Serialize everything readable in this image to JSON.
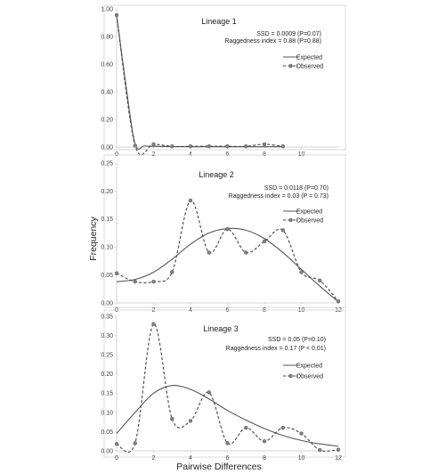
{
  "figure": {
    "ylabel": "Frequency",
    "xlabel": "Pairwise Differences"
  },
  "legend": {
    "expected": "Expected",
    "observed": "Observed"
  },
  "chart_data": [
    {
      "type": "line",
      "title": "Lineage 1",
      "annotations": [
        "SSD = 0.0009 (P=0.07)",
        "Raggedness index = 0.88 (P=0.88)"
      ],
      "xlim": [
        0,
        12
      ],
      "ylim": [
        0,
        1.0
      ],
      "xticks": [
        "0",
        "2",
        "4",
        "6",
        "8",
        "10"
      ],
      "yticks": [
        "0.00",
        "0.20",
        "0.40",
        "0.60",
        "0.80",
        "1.00"
      ],
      "legend_position": "right",
      "series": [
        {
          "name": "Expected",
          "x": [
            0,
            0.5,
            1,
            1.5,
            2,
            3,
            4,
            5,
            6,
            7,
            8,
            9
          ],
          "y": [
            0.955,
            0.45,
            0.02,
            0.008,
            0.005,
            0.003,
            0.002,
            0.002,
            0.002,
            0.002,
            0.002,
            0.002
          ]
        },
        {
          "name": "Observed",
          "x": [
            0,
            1,
            2,
            3,
            4,
            5,
            6,
            7,
            8,
            9
          ],
          "y": [
            0.955,
            0.01,
            0.02,
            0.005,
            0.005,
            0.005,
            0.005,
            0.005,
            0.02,
            0.005
          ]
        }
      ]
    },
    {
      "type": "line",
      "title": "Lineage 2",
      "annotations": [
        "SSD = 0.0118 (P=0.70)",
        "Raggedness index = 0.03 (P = 0.73)"
      ],
      "xlim": [
        0,
        12
      ],
      "ylim": [
        0,
        0.25
      ],
      "xticks": [
        "0",
        "2",
        "4",
        "6",
        "8",
        "10",
        "12"
      ],
      "yticks": [
        "0.00",
        "0.05",
        "0.10",
        "0.15",
        "0.20",
        "0.25"
      ],
      "legend_position": "right",
      "series": [
        {
          "name": "Expected",
          "x": [
            0,
            1,
            2,
            3,
            4,
            5,
            6,
            7,
            8,
            9,
            10,
            11,
            12
          ],
          "y": [
            0.038,
            0.042,
            0.055,
            0.078,
            0.105,
            0.125,
            0.133,
            0.13,
            0.115,
            0.09,
            0.06,
            0.03,
            0.002
          ]
        },
        {
          "name": "Observed",
          "x": [
            0,
            1,
            2,
            3,
            4,
            5,
            6,
            7,
            8,
            9,
            10,
            11,
            12
          ],
          "y": [
            0.053,
            0.038,
            0.038,
            0.055,
            0.183,
            0.09,
            0.132,
            0.09,
            0.11,
            0.13,
            0.055,
            0.04,
            0.003
          ]
        }
      ]
    },
    {
      "type": "line",
      "title": "Lineage 3",
      "annotations": [
        "SSD = 0.05 (P=0.10)",
        "Raggedness index = 0.17 (P < 0.01)"
      ],
      "xlim": [
        0,
        12
      ],
      "ylim": [
        0,
        0.35
      ],
      "xticks": [
        "0",
        "2",
        "4",
        "6",
        "8",
        "10",
        "12"
      ],
      "yticks": [
        "0.00",
        "0.05",
        "0.10",
        "0.15",
        "0.20",
        "0.25",
        "0.30",
        "0.35"
      ],
      "legend_position": "right",
      "series": [
        {
          "name": "Expected",
          "x": [
            0,
            1,
            2,
            3,
            4,
            5,
            6,
            7,
            8,
            9,
            10,
            11,
            12
          ],
          "y": [
            0.045,
            0.1,
            0.15,
            0.17,
            0.16,
            0.135,
            0.105,
            0.08,
            0.058,
            0.04,
            0.027,
            0.018,
            0.012
          ]
        },
        {
          "name": "Observed",
          "x": [
            0,
            1,
            2,
            3,
            4,
            5,
            6,
            7,
            8,
            9,
            10,
            11,
            12
          ],
          "y": [
            0.018,
            0.02,
            0.33,
            0.083,
            0.078,
            0.152,
            0.02,
            0.06,
            0.025,
            0.06,
            0.045,
            0.002,
            0.003
          ]
        }
      ]
    }
  ]
}
